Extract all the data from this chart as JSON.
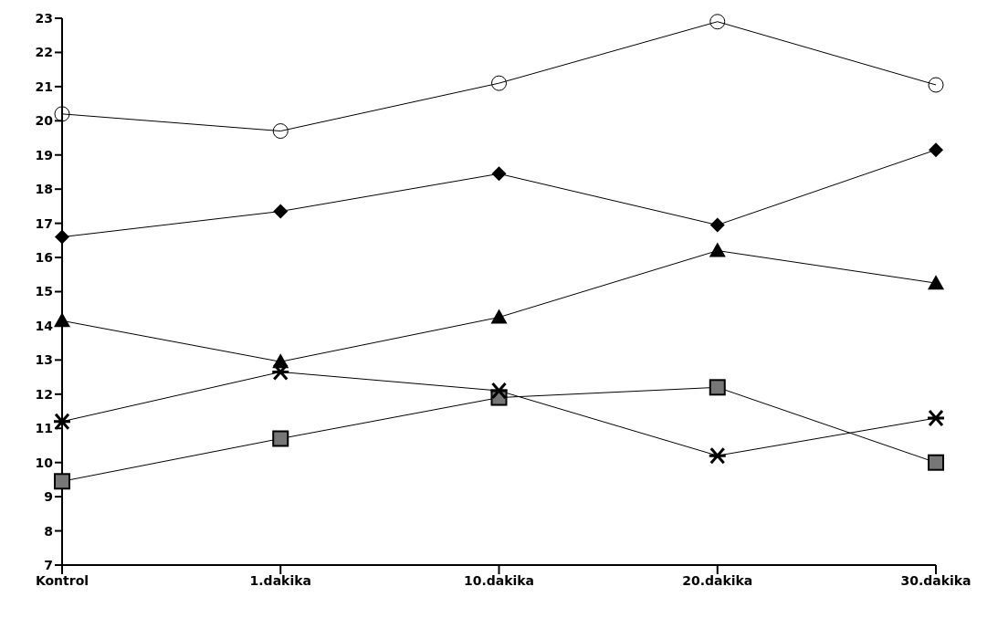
{
  "chart_data": {
    "type": "line",
    "categories": [
      "Kontrol",
      "1.dakika",
      "10.dakika",
      "20.dakika",
      "30.dakika"
    ],
    "ylim": [
      7,
      23
    ],
    "yticks": [
      7,
      8,
      9,
      10,
      11,
      12,
      13,
      14,
      15,
      16,
      17,
      18,
      19,
      20,
      21,
      22,
      23
    ],
    "grid": false,
    "legend": false,
    "series": [
      {
        "color": "#000000",
        "marker": "circle",
        "values": [
          20.2,
          19.7,
          21.1,
          22.9,
          21.05
        ]
      },
      {
        "color": "#000000",
        "marker": "diamond",
        "values": [
          16.6,
          17.35,
          18.45,
          16.95,
          19.15
        ]
      },
      {
        "color": "#000000",
        "marker": "triangle",
        "values": [
          14.15,
          12.95,
          14.25,
          16.2,
          15.25
        ]
      },
      {
        "color": "#000000",
        "marker": "square",
        "values": [
          9.45,
          10.7,
          11.9,
          12.2,
          10.0
        ]
      },
      {
        "color": "#000000",
        "marker": "cross",
        "values": [
          11.2,
          12.65,
          12.1,
          10.2,
          11.3
        ]
      }
    ]
  }
}
